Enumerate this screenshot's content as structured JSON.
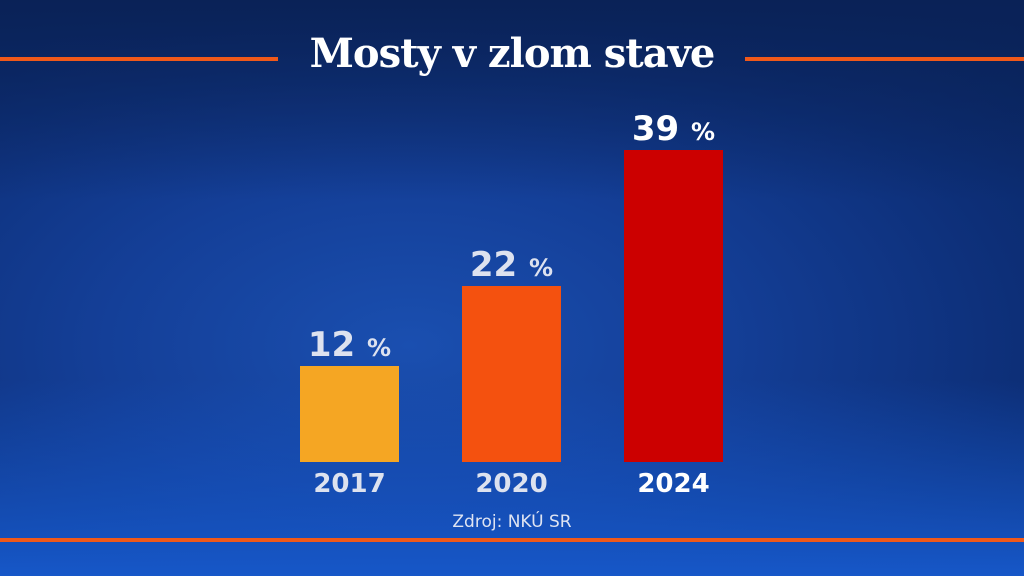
{
  "title": "Mosty v zlom stave",
  "source": "Zdroj: NKÚ SR",
  "colors": {
    "accent_line": "#f0591a",
    "background": "#143f98"
  },
  "chart_data": {
    "type": "bar",
    "title": "Mosty v zlom stave",
    "categories": [
      "2017",
      "2020",
      "2024"
    ],
    "values": [
      12,
      22,
      39
    ],
    "value_labels": [
      "12 %",
      "22 %",
      "39 %"
    ],
    "unit": "%",
    "bar_colors": [
      "#f5a623",
      "#f4510f",
      "#cc0000"
    ],
    "label_colors": [
      "#dde2ef",
      "#dde2ef",
      "#ffffff"
    ],
    "xlabel": "",
    "ylabel": "",
    "grid": false,
    "legend": "none"
  }
}
